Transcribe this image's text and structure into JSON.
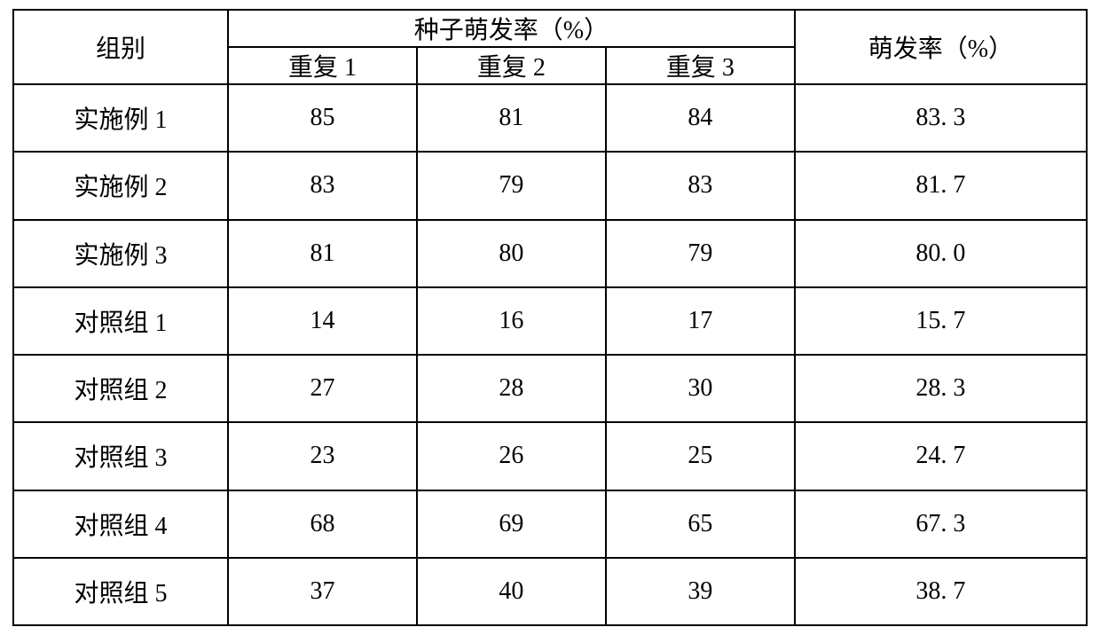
{
  "table": {
    "type": "table",
    "border_color": "#000000",
    "border_width": 2,
    "background_color": "#ffffff",
    "text_color": "#000000",
    "font_family": "SimSun",
    "font_size_pt": 21,
    "header": {
      "group_label": "组别",
      "seed_rate_header": "种子萌发率（%）",
      "repeat_labels": [
        "重复 1",
        "重复 2",
        "重复 3"
      ],
      "avg_rate_label": "萌发率（%）"
    },
    "column_widths_pct": [
      20,
      17.6,
      17.6,
      17.6,
      27.2
    ],
    "rows": [
      {
        "group": "实施例 1",
        "reps": [
          "85",
          "81",
          "84"
        ],
        "avg": "83. 3"
      },
      {
        "group": "实施例 2",
        "reps": [
          "83",
          "79",
          "83"
        ],
        "avg": "81. 7"
      },
      {
        "group": "实施例 3",
        "reps": [
          "81",
          "80",
          "79"
        ],
        "avg": "80. 0"
      },
      {
        "group": "对照组 1",
        "reps": [
          "14",
          "16",
          "17"
        ],
        "avg": "15. 7"
      },
      {
        "group": "对照组 2",
        "reps": [
          "27",
          "28",
          "30"
        ],
        "avg": "28. 3"
      },
      {
        "group": "对照组 3",
        "reps": [
          "23",
          "26",
          "25"
        ],
        "avg": "24. 7"
      },
      {
        "group": "对照组 4",
        "reps": [
          "68",
          "69",
          "65"
        ],
        "avg": "67. 3"
      },
      {
        "group": "对照组 5",
        "reps": [
          "37",
          "40",
          "39"
        ],
        "avg": "38. 7"
      }
    ]
  }
}
